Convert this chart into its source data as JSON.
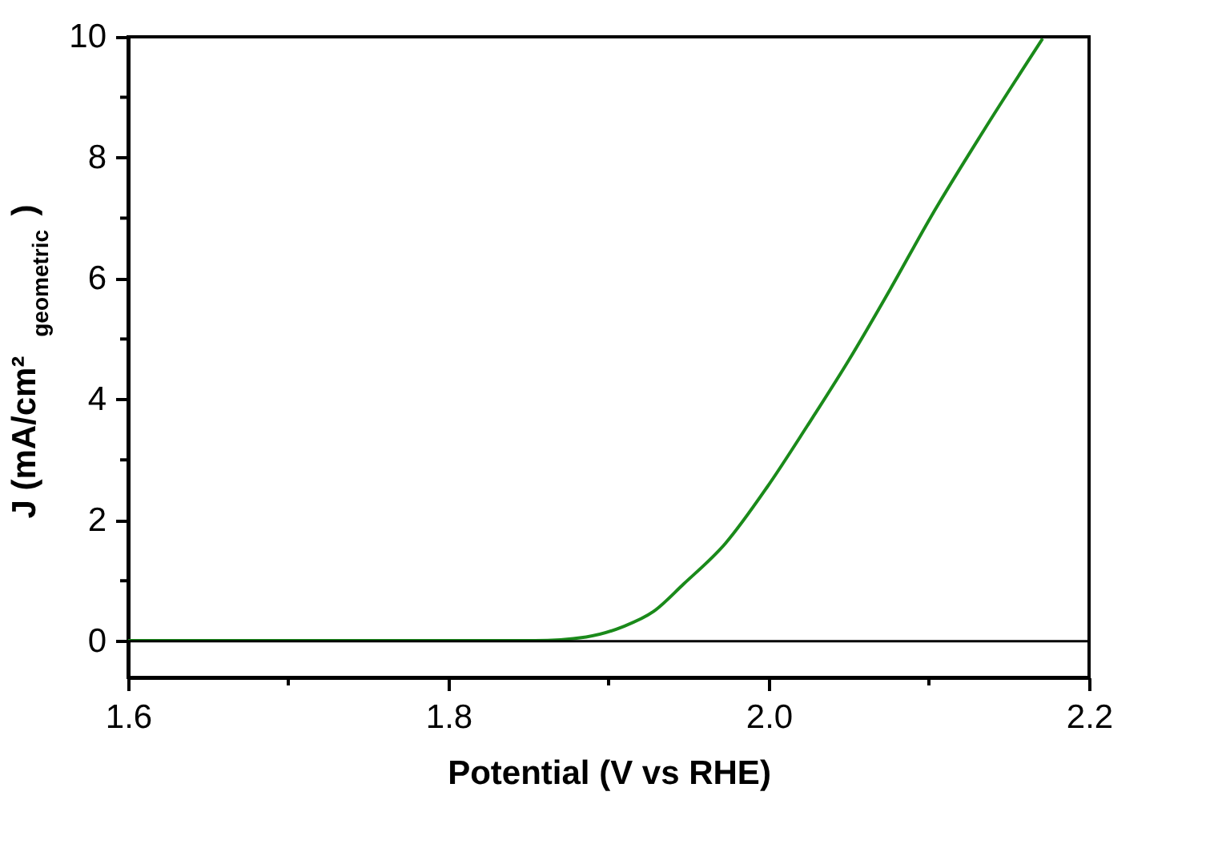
{
  "chart_data": {
    "type": "line",
    "xlabel": "Potential  (V vs RHE)",
    "ylabel": "J (mA/cm²$_{geometric}$)",
    "xlim": [
      1.6,
      2.2
    ],
    "ylim": [
      -0.6,
      10
    ],
    "xticks": [
      {
        "value": 1.6,
        "label": "1.6"
      },
      {
        "value": 1.7,
        "label": null
      },
      {
        "value": 1.8,
        "label": "1.8"
      },
      {
        "value": 1.9,
        "label": null
      },
      {
        "value": 2.0,
        "label": "2.0"
      },
      {
        "value": 2.1,
        "label": null
      },
      {
        "value": 2.2,
        "label": "2.2"
      }
    ],
    "yticks": [
      0,
      {
        "value": 1,
        "label": null
      },
      2,
      {
        "value": 3,
        "label": null
      },
      4,
      {
        "value": 5,
        "label": null
      },
      6,
      {
        "value": 7,
        "label": null
      },
      8,
      {
        "value": 9,
        "label": null
      },
      10
    ],
    "grid": false,
    "marker": "none",
    "line_style": "solid",
    "ref_lines": [
      {
        "axis": "y",
        "value": 0,
        "color": "#000000",
        "line_style": "solid"
      }
    ],
    "series": [
      {
        "color": "#1a8a1a",
        "x": [
          1.6,
          1.7,
          1.748,
          1.854,
          1.886,
          1.909,
          1.928,
          1.947,
          1.973,
          1.999,
          2.024,
          2.05,
          2.076,
          2.101,
          2.134,
          2.171
        ],
        "values": [
          0.01,
          0.01,
          0.01,
          0.01,
          0.07,
          0.24,
          0.49,
          0.95,
          1.62,
          2.55,
          3.56,
          4.65,
          5.83,
          7.01,
          8.44,
          9.97
        ]
      }
    ]
  }
}
